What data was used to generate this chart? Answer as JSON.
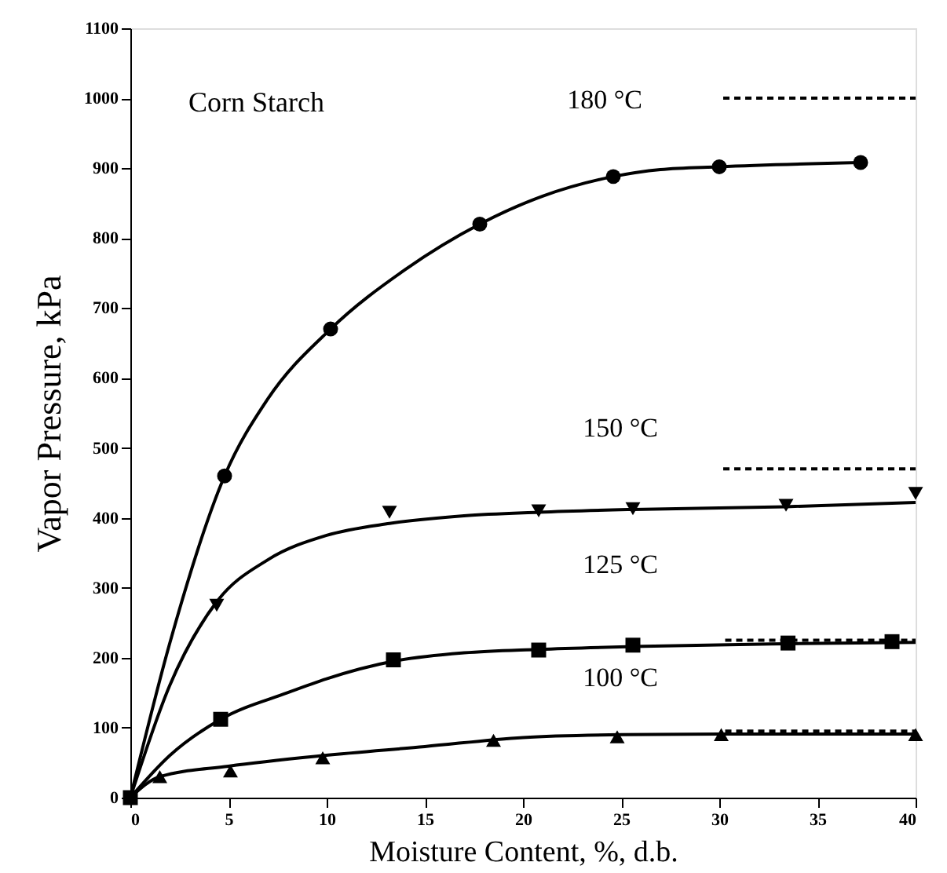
{
  "chart_data": {
    "type": "line",
    "xlabel": "Moisture Content, %, d.b.",
    "ylabel": "Vapor Pressure, kPa",
    "xlim": [
      0,
      40
    ],
    "xticks": [
      0,
      5,
      10,
      15,
      20,
      25,
      30,
      35,
      40
    ],
    "ylim": [
      0,
      1100
    ],
    "yticks": [
      0,
      100,
      200,
      300,
      400,
      500,
      600,
      700,
      800,
      900,
      1000,
      1100
    ],
    "grid": false,
    "annotations": [
      "Corn Starch",
      "180 °C",
      "150 °C",
      "125 °C",
      "100 °C"
    ],
    "series": [
      {
        "type": "line",
        "color": "#000000",
        "line_style": "solid",
        "marker": "none",
        "x": [
          0,
          2,
          4.8,
          7,
          10.2,
          14,
          17.8,
          21,
          24.6,
          27,
          30,
          37.2
        ],
        "values": [
          0,
          220,
          460,
          570,
          670,
          755,
          820,
          860,
          888,
          898,
          902,
          908
        ]
      },
      {
        "type": "scatter",
        "color": "#000000",
        "marker": "circle",
        "x": [
          4.8,
          10.2,
          17.8,
          24.6,
          30,
          37.2
        ],
        "values": [
          460,
          670,
          820,
          888,
          902,
          908
        ]
      },
      {
        "type": "line",
        "color": "#000000",
        "line_style": "solid",
        "marker": "none",
        "x": [
          0,
          2,
          4.4,
          7,
          10,
          13.2,
          17,
          20.8,
          25.6,
          33.4,
          40
        ],
        "values": [
          0,
          160,
          280,
          340,
          375,
          392,
          403,
          408,
          412,
          416,
          422
        ]
      },
      {
        "type": "scatter",
        "color": "#000000",
        "marker": "triangle-down",
        "x": [
          4.4,
          13.2,
          20.8,
          25.6,
          33.4,
          40
        ],
        "values": [
          275,
          408,
          410,
          413,
          418,
          435
        ]
      },
      {
        "type": "line",
        "color": "#000000",
        "line_style": "solid",
        "marker": "none",
        "x": [
          0,
          2,
          4.6,
          8,
          10,
          13.4,
          17,
          20.8,
          25.6,
          33.5,
          40
        ],
        "values": [
          0,
          60,
          112,
          150,
          170,
          195,
          207,
          212,
          216,
          220,
          222
        ]
      },
      {
        "type": "scatter",
        "color": "#000000",
        "marker": "square",
        "x": [
          0,
          4.6,
          13.4,
          20.8,
          25.6,
          33.5,
          38.8
        ],
        "values": [
          0,
          112,
          197,
          211,
          218,
          221,
          223
        ]
      },
      {
        "type": "line",
        "color": "#000000",
        "line_style": "solid",
        "marker": "none",
        "x": [
          0,
          1.5,
          5,
          9.8,
          15,
          20,
          25,
          30,
          40
        ],
        "values": [
          0,
          30,
          45,
          60,
          73,
          86,
          90,
          91,
          91
        ]
      },
      {
        "type": "scatter",
        "color": "#000000",
        "marker": "triangle-up",
        "x": [
          1.5,
          5.1,
          9.8,
          18.5,
          24.8,
          30.1,
          40
        ],
        "values": [
          30,
          38,
          57,
          82,
          87,
          90,
          90
        ]
      },
      {
        "type": "line",
        "color": "#000000",
        "line_style": "dashed",
        "marker": "none",
        "x": [
          30.2,
          40
        ],
        "values": [
          1000,
          1000
        ]
      },
      {
        "type": "line",
        "color": "#000000",
        "line_style": "dashed",
        "marker": "none",
        "x": [
          30.2,
          40
        ],
        "values": [
          470,
          470
        ]
      },
      {
        "type": "line",
        "color": "#000000",
        "line_style": "dashed",
        "marker": "none",
        "x": [
          30.3,
          40
        ],
        "values": [
          225,
          225
        ]
      },
      {
        "type": "line",
        "color": "#000000",
        "line_style": "dashed",
        "marker": "none",
        "x": [
          30.3,
          40
        ],
        "values": [
          95,
          95
        ]
      }
    ]
  }
}
